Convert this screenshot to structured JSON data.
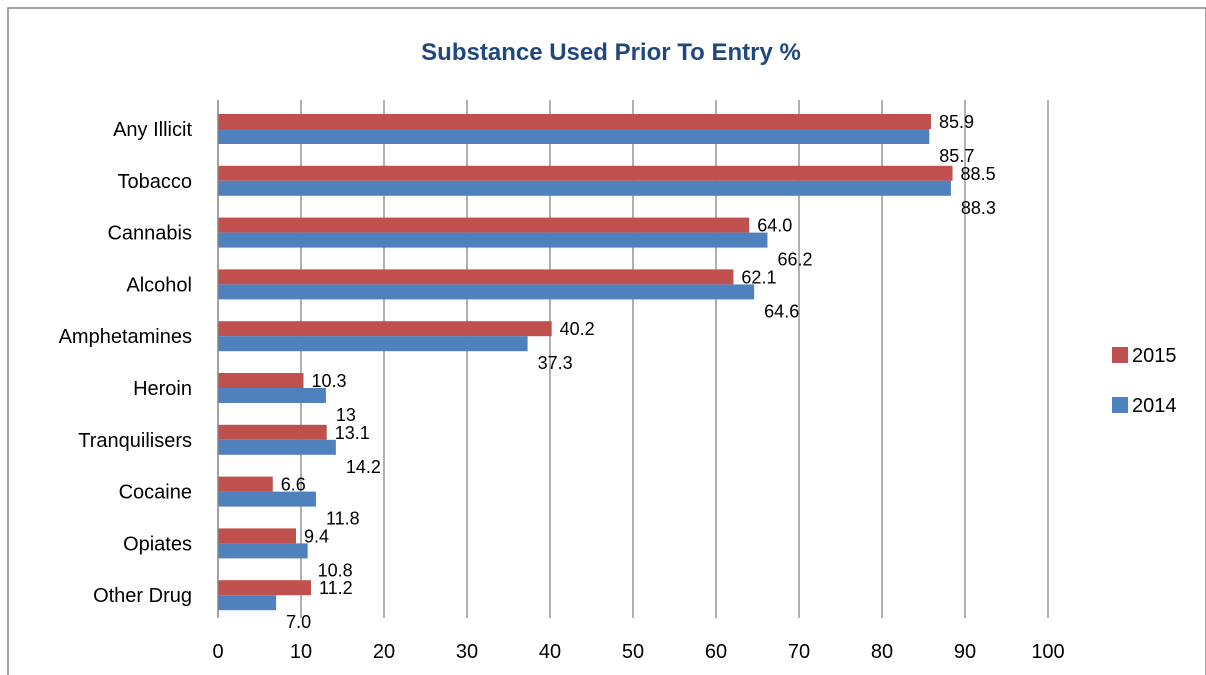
{
  "chart_data": {
    "type": "bar",
    "orientation": "horizontal",
    "title": "Substance Used Prior To Entry %",
    "categories": [
      "Any Illicit",
      "Tobacco",
      "Cannabis",
      "Alcohol",
      "Amphetamines",
      "Heroin",
      "Tranquilisers",
      "Cocaine",
      "Opiates",
      "Other Drug"
    ],
    "series": [
      {
        "name": "2015",
        "color": "#c0504d",
        "values": [
          85.9,
          88.5,
          64.0,
          62.1,
          40.2,
          10.3,
          13.1,
          6.6,
          9.4,
          11.2
        ],
        "labels": [
          "85.9",
          "88.5",
          "64.0",
          "62.1",
          "40.2",
          "10.3",
          "13.1",
          "6.6",
          "9.4",
          "11.2"
        ]
      },
      {
        "name": "2014",
        "color": "#4f81bd",
        "values": [
          85.7,
          88.3,
          66.2,
          64.6,
          37.3,
          13,
          14.2,
          11.8,
          10.8,
          7.0
        ],
        "labels": [
          "85.7",
          "88.3",
          "66.2",
          "64.6",
          "37.3",
          "13",
          "14.2",
          "11.8",
          "10.8",
          "7.0"
        ]
      }
    ],
    "xlim": [
      0,
      100
    ],
    "xticks": [
      "0",
      "10",
      "20",
      "30",
      "40",
      "50",
      "60",
      "70",
      "80",
      "90",
      "100"
    ],
    "grid": "vertical",
    "legend": "right"
  }
}
